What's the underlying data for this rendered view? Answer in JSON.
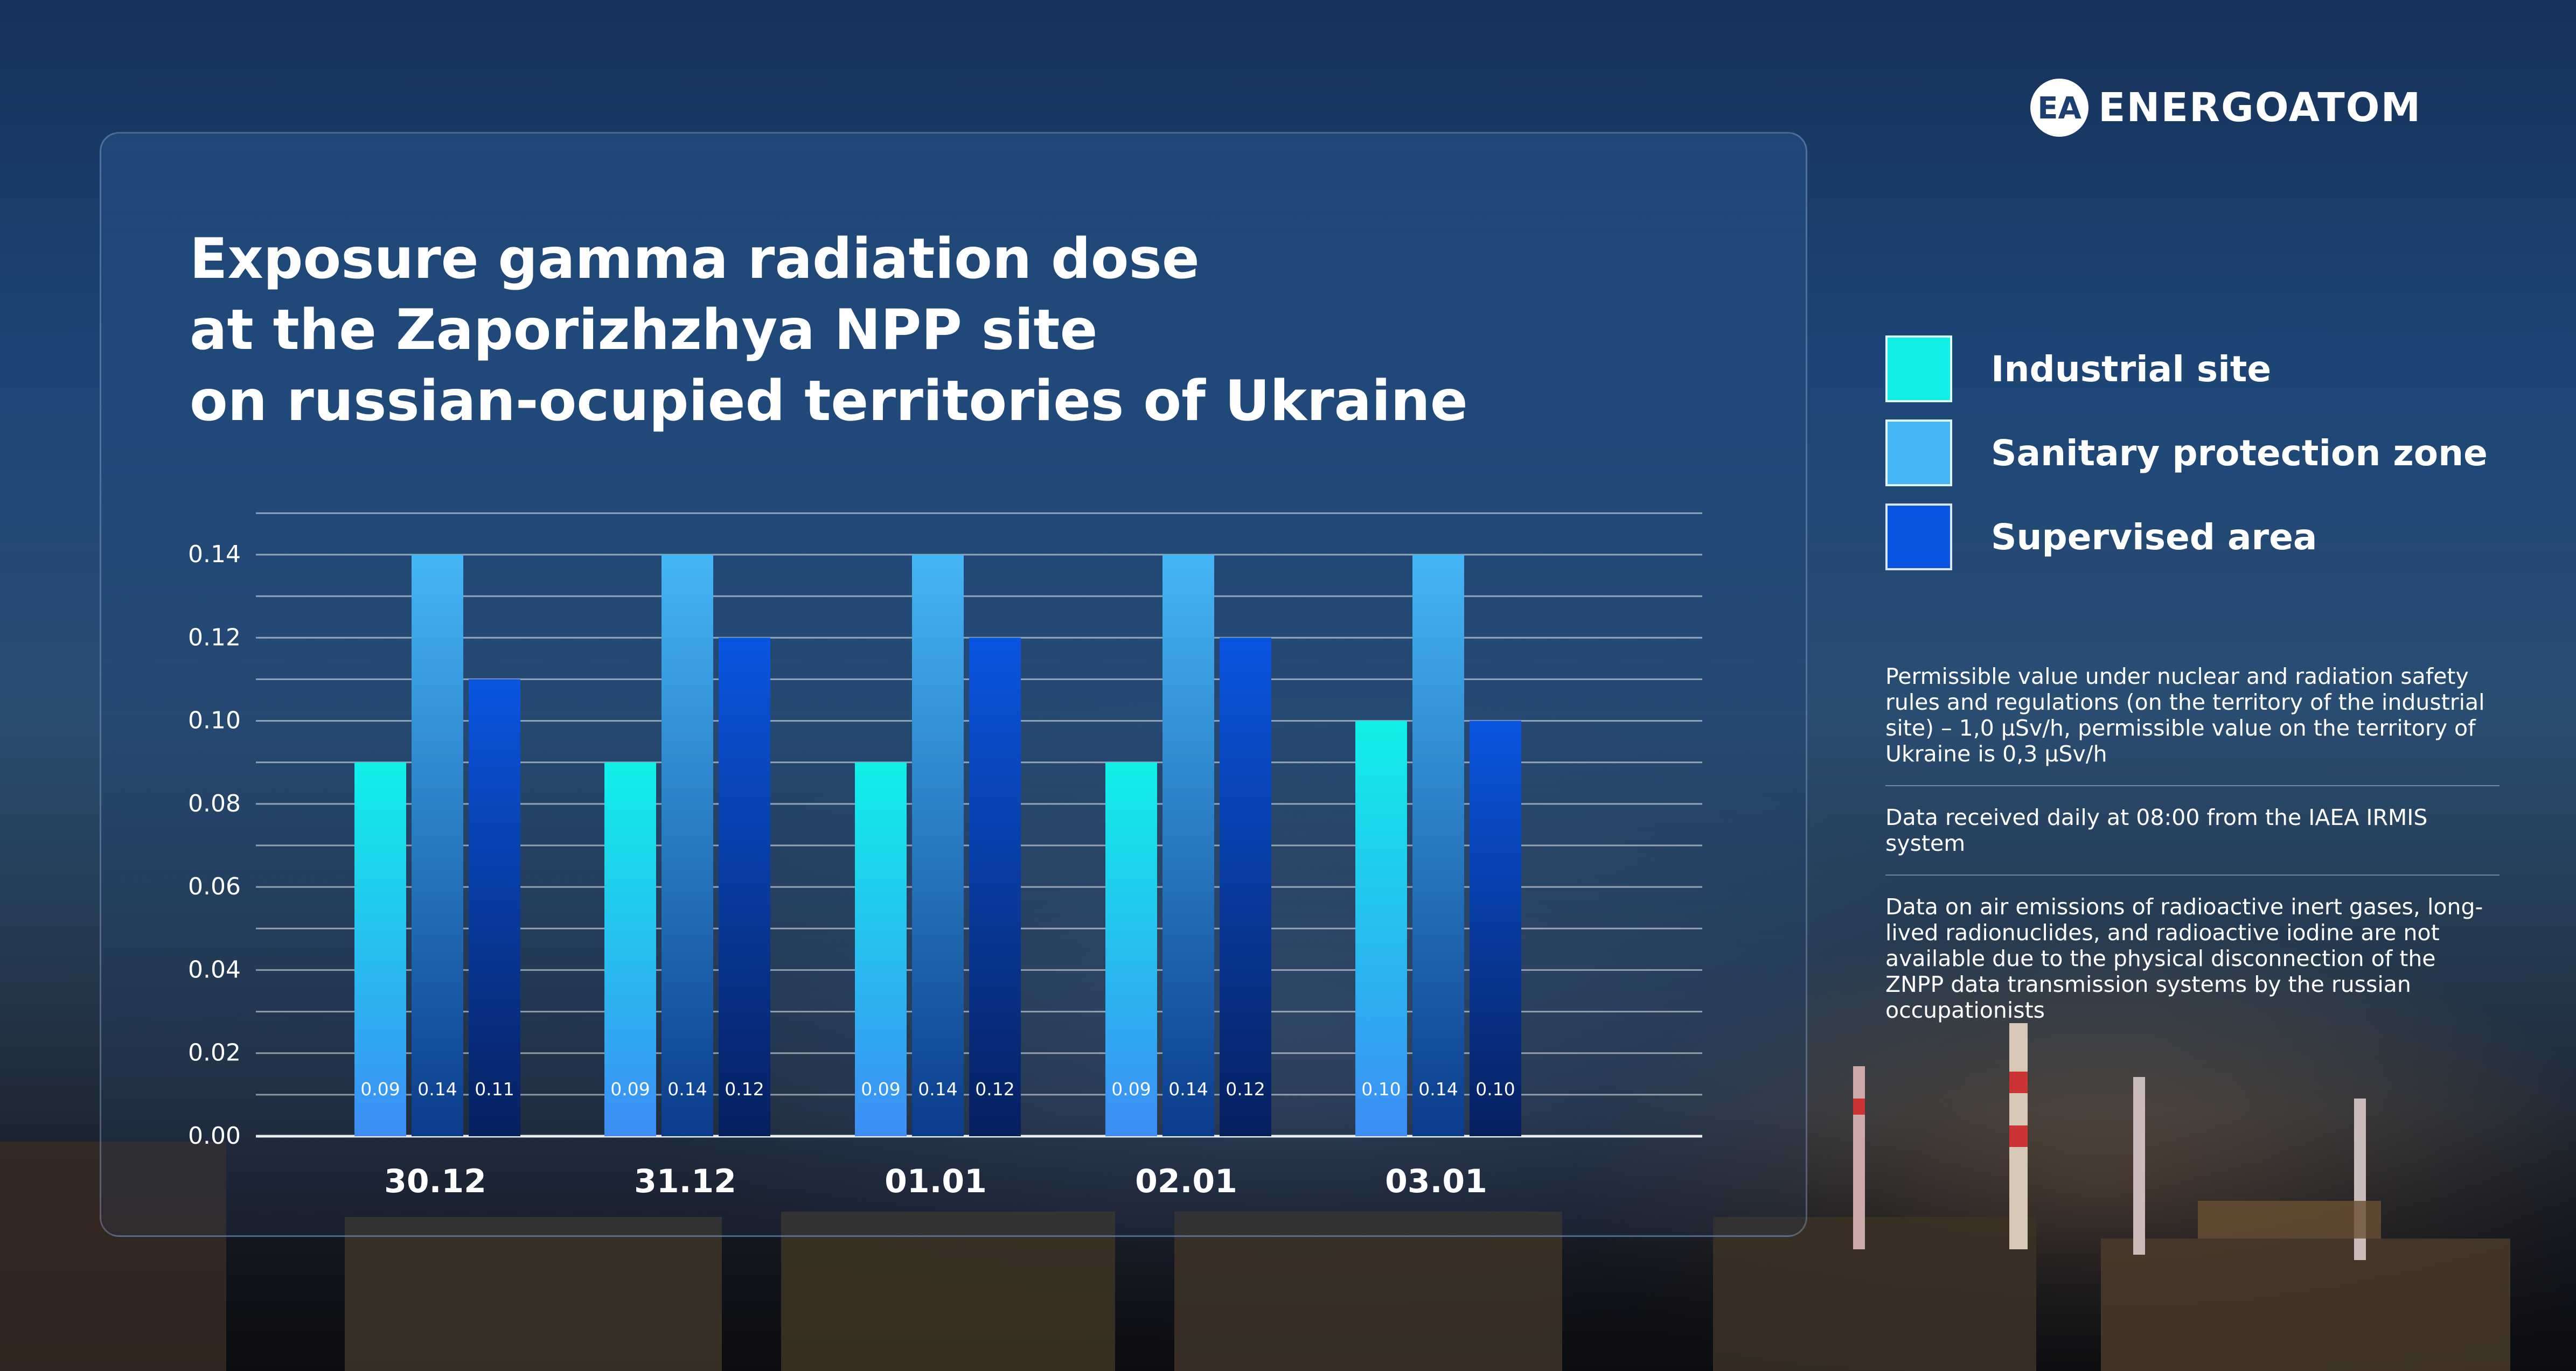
{
  "brand": {
    "name": "ENERGOATOM",
    "logo_icon": "energoatom-logo-icon"
  },
  "title_lines": [
    "Exposure gamma radiation dose",
    "at the Zaporizhzhya NPP site",
    "on russian-ocupied territories of Ukraine"
  ],
  "chart_data": {
    "type": "bar",
    "categories": [
      "30.12",
      "31.12",
      "01.01",
      "02.01",
      "03.01"
    ],
    "series": [
      {
        "name": "Industrial site",
        "values": [
          0.09,
          0.09,
          0.09,
          0.09,
          0.1
        ],
        "labels": [
          "0.09",
          "0.09",
          "0.09",
          "0.09",
          "0.10"
        ],
        "color": "#10f0e8"
      },
      {
        "name": "Sanitary protection zone",
        "values": [
          0.14,
          0.14,
          0.14,
          0.14,
          0.14
        ],
        "labels": [
          "0.14",
          "0.14",
          "0.14",
          "0.14",
          "0.14"
        ],
        "color": "#45b6f5"
      },
      {
        "name": "Supervised area",
        "values": [
          0.11,
          0.12,
          0.12,
          0.12,
          0.1
        ],
        "labels": [
          "0.11",
          "0.12",
          "0.12",
          "0.12",
          "0.10"
        ],
        "color": "#0a55e0"
      }
    ],
    "ylim": [
      0,
      0.14
    ],
    "yticks": [
      "0.00",
      "0.02",
      "0.04",
      "0.06",
      "0.08",
      "0.10",
      "0.12",
      "0.14"
    ],
    "grid": true,
    "legend_position": "right"
  },
  "notes": [
    "Permissible value under nuclear and radiation safety rules and regulations (on the territory of the industrial site) – 1,0 µSv/h, permissible value on the territory of Ukraine is 0,3 µSv/h",
    "Data received daily at 08:00 from the IAEA IRMIS system",
    "Data on air emissions of radioactive inert gases, long-lived radionuclides, and radioactive iodine are not available due to the physical disconnection of the ZNPP data transmission systems by the russian occupationists"
  ]
}
